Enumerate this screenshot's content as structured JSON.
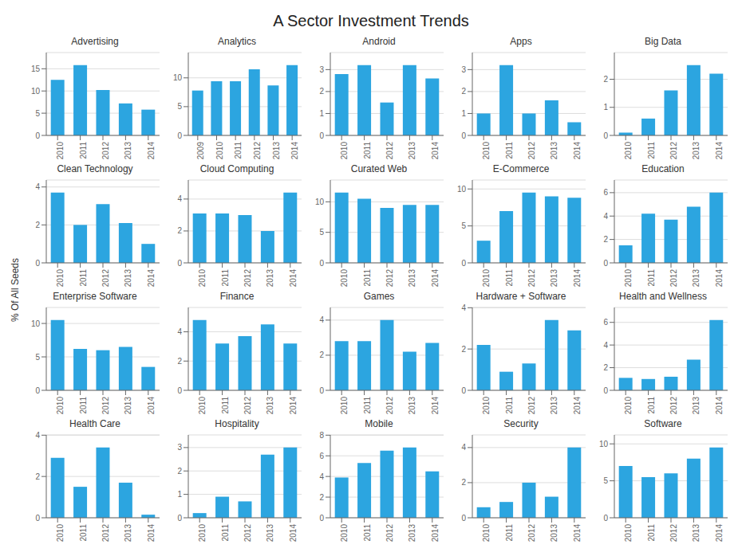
{
  "title": "A Sector Investment Trends",
  "ylabel": "% Of All Seeds",
  "chart_data": [
    {
      "type": "bar",
      "title": "Advertising",
      "categories": [
        "2010",
        "2011",
        "2012",
        "2013",
        "2014"
      ],
      "values": [
        12.5,
        15.8,
        10.2,
        7.2,
        5.8
      ],
      "color": "#2ca5e0",
      "ylim": [
        0,
        18.644
      ],
      "yticks": [
        0,
        5,
        10,
        15
      ],
      "grid": true
    },
    {
      "type": "bar",
      "title": "Analytics",
      "categories": [
        "2009",
        "2010",
        "2011",
        "2012",
        "2013",
        "2014"
      ],
      "values": [
        7.8,
        9.4,
        9.4,
        11.5,
        8.7,
        12.2
      ],
      "color": "#2ca5e0",
      "ylim": [
        0,
        14.396
      ],
      "yticks": [
        0,
        5,
        10
      ],
      "grid": true
    },
    {
      "type": "bar",
      "title": "Android",
      "categories": [
        "2010",
        "2011",
        "2012",
        "2013",
        "2014"
      ],
      "values": [
        2.8,
        3.2,
        1.5,
        3.2,
        2.6
      ],
      "color": "#2ca5e0",
      "ylim": [
        0,
        3.776
      ],
      "yticks": [
        0,
        1,
        2,
        3
      ],
      "grid": true
    },
    {
      "type": "bar",
      "title": "Apps",
      "categories": [
        "2010",
        "2011",
        "2012",
        "2013",
        "2014"
      ],
      "values": [
        1.0,
        3.2,
        1.0,
        1.6,
        0.6
      ],
      "color": "#2ca5e0",
      "ylim": [
        0,
        3.776
      ],
      "yticks": [
        0,
        1,
        2,
        3
      ],
      "grid": true
    },
    {
      "type": "bar",
      "title": "Big Data",
      "categories": [
        "2010",
        "2011",
        "2012",
        "2013",
        "2014"
      ],
      "values": [
        0.1,
        0.6,
        1.6,
        2.5,
        2.2
      ],
      "color": "#2ca5e0",
      "ylim": [
        0,
        2.95
      ],
      "yticks": [
        0,
        1,
        2
      ],
      "grid": true
    },
    {
      "type": "bar",
      "title": "Clean Technology",
      "categories": [
        "2010",
        "2011",
        "2012",
        "2013",
        "2014"
      ],
      "values": [
        3.7,
        2.0,
        3.1,
        2.1,
        1.0
      ],
      "color": "#2ca5e0",
      "ylim": [
        0,
        4.366
      ],
      "yticks": [
        0,
        2,
        4
      ],
      "grid": true
    },
    {
      "type": "bar",
      "title": "Cloud Computing",
      "categories": [
        "2010",
        "2011",
        "2012",
        "2013",
        "2014"
      ],
      "values": [
        3.1,
        3.1,
        3.0,
        2.0,
        4.4
      ],
      "color": "#2ca5e0",
      "ylim": [
        0,
        5.192
      ],
      "yticks": [
        0,
        2,
        4
      ],
      "grid": true
    },
    {
      "type": "bar",
      "title": "Curated Web",
      "categories": [
        "2010",
        "2011",
        "2012",
        "2013",
        "2014"
      ],
      "values": [
        11.5,
        10.5,
        9.0,
        9.5,
        9.5
      ],
      "color": "#2ca5e0",
      "ylim": [
        0,
        13.57
      ],
      "yticks": [
        0,
        5,
        10
      ],
      "grid": true
    },
    {
      "type": "bar",
      "title": "E-Commerce",
      "categories": [
        "2010",
        "2011",
        "2012",
        "2013",
        "2014"
      ],
      "values": [
        3.0,
        7.0,
        9.5,
        9.0,
        8.8
      ],
      "color": "#2ca5e0",
      "ylim": [
        0,
        11.21
      ],
      "yticks": [
        0,
        5,
        10
      ],
      "grid": true
    },
    {
      "type": "bar",
      "title": "Education",
      "categories": [
        "2010",
        "2011",
        "2012",
        "2013",
        "2014"
      ],
      "values": [
        1.5,
        4.2,
        3.7,
        4.8,
        6.0
      ],
      "color": "#2ca5e0",
      "ylim": [
        0,
        7.08
      ],
      "yticks": [
        0,
        2,
        4,
        6
      ],
      "grid": true
    },
    {
      "type": "bar",
      "title": "Enterprise Software",
      "categories": [
        "2010",
        "2011",
        "2012",
        "2013",
        "2014"
      ],
      "values": [
        10.5,
        6.2,
        6.0,
        6.5,
        3.5
      ],
      "color": "#2ca5e0",
      "ylim": [
        0,
        12.39
      ],
      "yticks": [
        0,
        5,
        10
      ],
      "grid": true
    },
    {
      "type": "bar",
      "title": "Finance",
      "categories": [
        "2010",
        "2011",
        "2012",
        "2013",
        "2014"
      ],
      "values": [
        4.8,
        3.2,
        3.7,
        4.5,
        3.2
      ],
      "color": "#2ca5e0",
      "ylim": [
        0,
        5.664
      ],
      "yticks": [
        0,
        2,
        4
      ],
      "grid": true
    },
    {
      "type": "bar",
      "title": "Games",
      "categories": [
        "2010",
        "2011",
        "2012",
        "2013",
        "2014"
      ],
      "values": [
        2.8,
        2.8,
        4.0,
        2.2,
        2.7
      ],
      "color": "#2ca5e0",
      "ylim": [
        0,
        4.72
      ],
      "yticks": [
        0,
        2,
        4
      ],
      "grid": true
    },
    {
      "type": "bar",
      "title": "Hardware + Software",
      "categories": [
        "2010",
        "2011",
        "2012",
        "2013",
        "2014"
      ],
      "values": [
        2.2,
        0.9,
        1.3,
        3.4,
        2.9
      ],
      "color": "#2ca5e0",
      "ylim": [
        0,
        4.012
      ],
      "yticks": [
        0,
        2,
        4
      ],
      "grid": true
    },
    {
      "type": "bar",
      "title": "Health and Wellness",
      "categories": [
        "2010",
        "2011",
        "2012",
        "2013",
        "2014"
      ],
      "values": [
        1.1,
        1.0,
        1.2,
        2.7,
        6.2
      ],
      "color": "#2ca5e0",
      "ylim": [
        0,
        7.316
      ],
      "yticks": [
        0,
        2,
        4,
        6
      ],
      "grid": true
    },
    {
      "type": "bar",
      "title": "Health Care",
      "categories": [
        "2010",
        "2011",
        "2012",
        "2013",
        "2014"
      ],
      "values": [
        2.9,
        1.5,
        3.4,
        1.7,
        0.15
      ],
      "color": "#2ca5e0",
      "ylim": [
        0,
        4.012
      ],
      "yticks": [
        0,
        2,
        4
      ],
      "grid": true
    },
    {
      "type": "bar",
      "title": "Hospitality",
      "categories": [
        "2010",
        "2011",
        "2012",
        "2013",
        "2014"
      ],
      "values": [
        0.2,
        0.9,
        0.7,
        2.7,
        3.0
      ],
      "color": "#2ca5e0",
      "ylim": [
        0,
        3.54
      ],
      "yticks": [
        0,
        1,
        2,
        3
      ],
      "grid": true
    },
    {
      "type": "bar",
      "title": "Mobile",
      "categories": [
        "2010",
        "2011",
        "2012",
        "2013",
        "2014"
      ],
      "values": [
        3.9,
        5.3,
        6.5,
        6.8,
        4.5
      ],
      "color": "#2ca5e0",
      "ylim": [
        0,
        8.024
      ],
      "yticks": [
        0,
        2,
        4,
        6,
        8
      ],
      "grid": true
    },
    {
      "type": "bar",
      "title": "Security",
      "categories": [
        "2010",
        "2011",
        "2012",
        "2013",
        "2014"
      ],
      "values": [
        0.6,
        0.9,
        2.0,
        1.2,
        4.0
      ],
      "color": "#2ca5e0",
      "ylim": [
        0,
        4.72
      ],
      "yticks": [
        0,
        2,
        4
      ],
      "grid": true
    },
    {
      "type": "bar",
      "title": "Software",
      "categories": [
        "2010",
        "2011",
        "2012",
        "2013",
        "2014"
      ],
      "values": [
        7.0,
        5.5,
        6.0,
        8.0,
        9.5
      ],
      "color": "#2ca5e0",
      "ylim": [
        0,
        11.21
      ],
      "yticks": [
        0,
        5,
        10
      ],
      "grid": true
    }
  ]
}
